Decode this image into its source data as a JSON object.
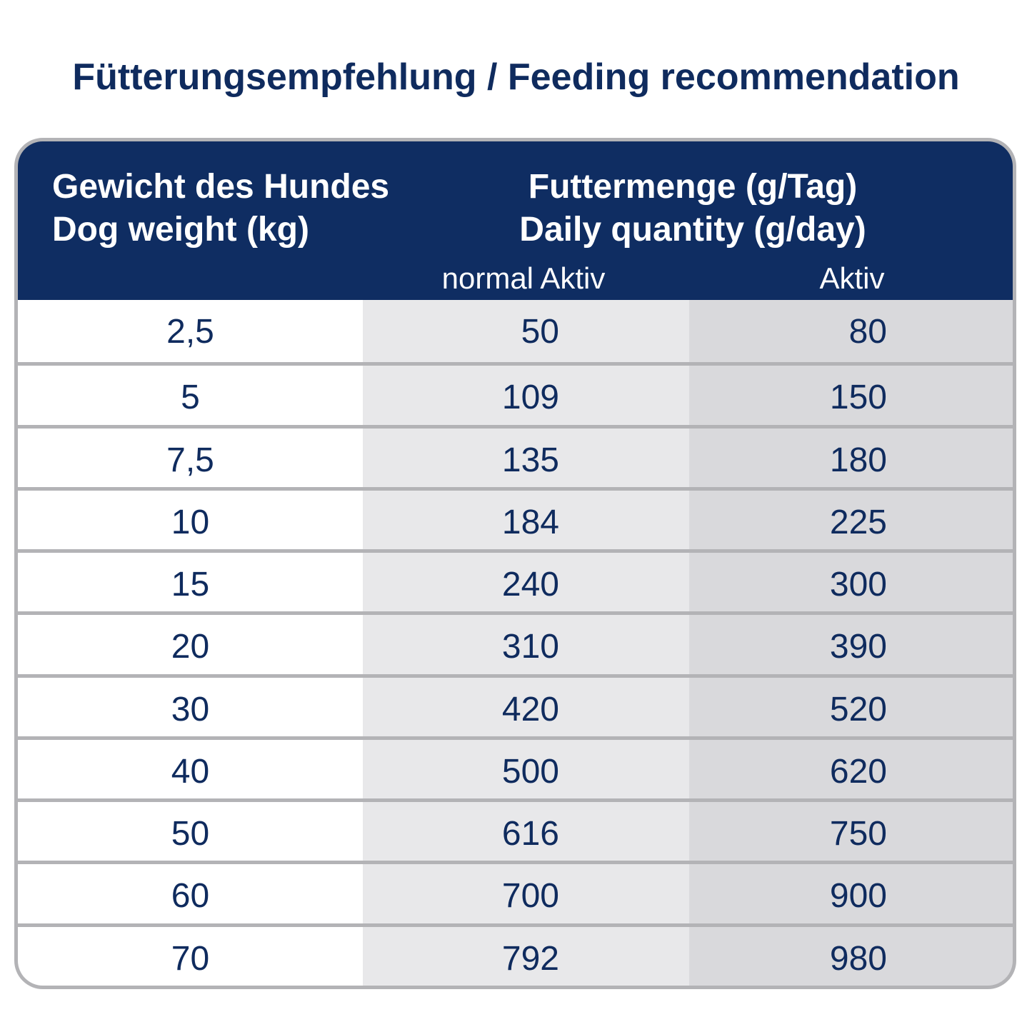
{
  "title": "Fütterungsempfehlung / Feeding recommendation",
  "table": {
    "header": {
      "weight": [
        "Gewicht des Hundes",
        "Dog weight (kg)"
      ],
      "quantity": [
        "Futtermenge (g/Tag)",
        "Daily quantity (g/day)"
      ],
      "subheaders": [
        "normal Aktiv",
        "Aktiv"
      ]
    },
    "rows": [
      [
        "2,5",
        "50",
        "80"
      ],
      [
        "5",
        "109",
        "150"
      ],
      [
        "7,5",
        "135",
        "180"
      ],
      [
        "10",
        "184",
        "225"
      ],
      [
        "15",
        "240",
        "300"
      ],
      [
        "20",
        "310",
        "390"
      ],
      [
        "30",
        "420",
        "520"
      ],
      [
        "40",
        "500",
        "620"
      ],
      [
        "50",
        "616",
        "750"
      ],
      [
        "60",
        "700",
        "900"
      ],
      [
        "70",
        "792",
        "980"
      ]
    ]
  }
}
